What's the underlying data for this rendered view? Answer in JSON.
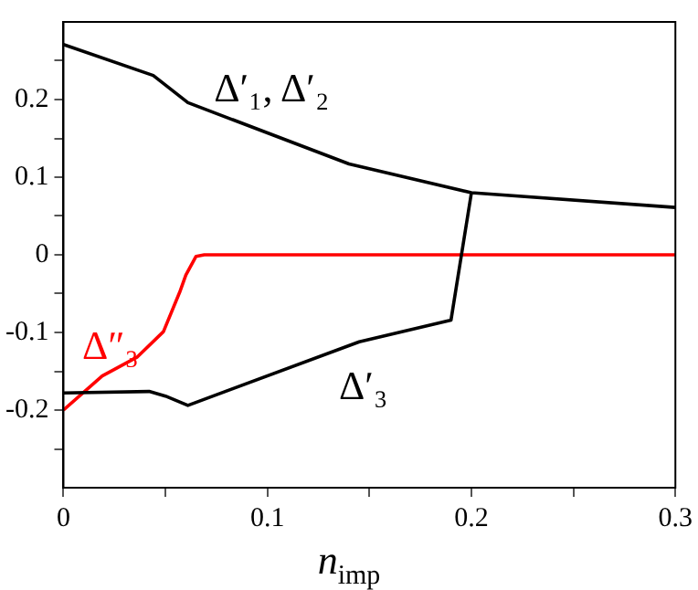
{
  "chart_data": {
    "type": "line",
    "xlabel": "n$_{imp}$",
    "xlim": [
      0,
      0.3
    ],
    "ylim": [
      -0.3,
      0.3
    ],
    "xticks": [
      0,
      {
        "value": 0.05,
        "label": null
      },
      0.1,
      {
        "value": 0.15,
        "label": null
      },
      0.2,
      {
        "value": 0.25,
        "label": null
      },
      0.3
    ],
    "yticks": [
      {
        "value": -0.25,
        "label": null
      },
      -0.2,
      {
        "value": -0.15,
        "label": null
      },
      -0.1,
      {
        "value": -0.05,
        "label": null
      },
      0,
      {
        "value": 0.05,
        "label": null
      },
      0.1,
      {
        "value": 0.15,
        "label": null
      },
      0.2,
      {
        "value": 0.25,
        "label": null
      }
    ],
    "grid": false,
    "legend": false,
    "marker": "none",
    "line_style": "solid",
    "series": [
      {
        "name": "Δ′₁, Δ′₂",
        "color": "#000000",
        "x": [
          0,
          0.044,
          0.061,
          0.14,
          0.2,
          0.3
        ],
        "values": [
          0.271,
          0.231,
          0.196,
          0.117,
          0.08,
          0.061
        ]
      },
      {
        "name": "Δ′₃",
        "color": "#000000",
        "x": [
          0,
          0.042,
          0.05,
          0.061,
          0.145,
          0.19,
          0.2
        ],
        "values": [
          -0.178,
          -0.176,
          -0.182,
          -0.194,
          -0.112,
          -0.084,
          0.08
        ]
      },
      {
        "name": "Δ″₃",
        "color": "#ff0000",
        "x": [
          0,
          0.019,
          0.036,
          0.049,
          0.057,
          0.06,
          0.065,
          0.069,
          0.3
        ],
        "values": [
          -0.2,
          -0.156,
          -0.132,
          -0.099,
          -0.048,
          -0.026,
          -0.002,
          0,
          0
        ]
      }
    ]
  }
}
